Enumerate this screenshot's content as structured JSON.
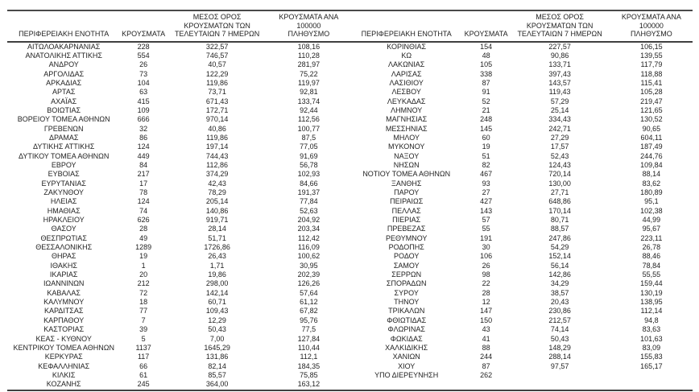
{
  "chart_data": {
    "type": "table",
    "headers": {
      "region": "ΠΕΡΙΦΕΡΕΙΑΚΗ ΕΝΟΤΗΤΑ",
      "cases": "ΚΡΟΥΣΜΑΤΑ",
      "avg7": "ΜΕΣΟΣ ΟΡΟΣ\nΚΡΟΥΣΜΑΤΩΝ ΤΩΝ\nΤΕΛΕΥΤΑΙΩΝ 7 ΗΜΕΡΩΝ",
      "per100k": "ΚΡΟΥΣΜΑΤΑ ΑΝΑ 100000\nΠΛΗΘΥΣΜΟ"
    },
    "left_rows": [
      [
        "ΑΙΤΩΛΟΑΚΑΡΝΑΝΙΑΣ",
        "228",
        "322,57",
        "108,16"
      ],
      [
        "ΑΝΑΤΟΛΙΚΗΣ ΑΤΤΙΚΗΣ",
        "554",
        "746,57",
        "110,28"
      ],
      [
        "ΑΝΔΡΟΥ",
        "26",
        "40,57",
        "281,97"
      ],
      [
        "ΑΡΓΟΛΙΔΑΣ",
        "73",
        "122,29",
        "75,22"
      ],
      [
        "ΑΡΚΑΔΙΑΣ",
        "104",
        "119,86",
        "119,97"
      ],
      [
        "ΑΡΤΑΣ",
        "63",
        "73,71",
        "92,81"
      ],
      [
        "ΑΧΑΪΑΣ",
        "415",
        "671,43",
        "133,74"
      ],
      [
        "ΒΟΙΩΤΙΑΣ",
        "109",
        "172,71",
        "92,44"
      ],
      [
        "ΒΟΡΕΙΟΥ ΤΟΜΕΑ ΑΘΗΝΩΝ",
        "666",
        "970,14",
        "112,56"
      ],
      [
        "ΓΡΕΒΕΝΩΝ",
        "32",
        "40,86",
        "100,77"
      ],
      [
        "ΔΡΑΜΑΣ",
        "86",
        "119,86",
        "87,5"
      ],
      [
        "ΔΥΤΙΚΗΣ ΑΤΤΙΚΗΣ",
        "124",
        "197,14",
        "77,05"
      ],
      [
        "ΔΥΤΙΚΟΥ ΤΟΜΕΑ ΑΘΗΝΩΝ",
        "449",
        "744,43",
        "91,69"
      ],
      [
        "ΕΒΡΟΥ",
        "84",
        "112,86",
        "56,78"
      ],
      [
        "ΕΥΒΟΙΑΣ",
        "217",
        "374,29",
        "102,93"
      ],
      [
        "ΕΥΡΥΤΑΝΙΑΣ",
        "17",
        "42,43",
        "84,66"
      ],
      [
        "ΖΑΚΥΝΘΟΥ",
        "78",
        "78,29",
        "191,37"
      ],
      [
        "ΗΛΕΙΑΣ",
        "124",
        "205,14",
        "77,84"
      ],
      [
        "ΗΜΑΘΙΑΣ",
        "74",
        "140,86",
        "52,63"
      ],
      [
        "ΗΡΑΚΛΕΙΟΥ",
        "626",
        "919,71",
        "204,92"
      ],
      [
        "ΘΑΣΟΥ",
        "28",
        "28,14",
        "203,34"
      ],
      [
        "ΘΕΣΠΡΩΤΙΑΣ",
        "49",
        "51,71",
        "112,42"
      ],
      [
        "ΘΕΣΣΑΛΟΝΙΚΗΣ",
        "1289",
        "1726,86",
        "116,09"
      ],
      [
        "ΘΗΡΑΣ",
        "19",
        "26,43",
        "100,62"
      ],
      [
        "ΙΘΑΚΗΣ",
        "1",
        "1,71",
        "30,95"
      ],
      [
        "ΙΚΑΡΙΑΣ",
        "20",
        "19,86",
        "202,39"
      ],
      [
        "ΙΩΑΝΝΙΝΩΝ",
        "212",
        "298,00",
        "126,26"
      ],
      [
        "ΚΑΒΑΛΑΣ",
        "72",
        "142,14",
        "57,64"
      ],
      [
        "ΚΑΛΥΜΝΟΥ",
        "18",
        "60,71",
        "61,12"
      ],
      [
        "ΚΑΡΔΙΤΣΑΣ",
        "77",
        "109,43",
        "67,82"
      ],
      [
        "ΚΑΡΠΑΘΟΥ",
        "7",
        "12,29",
        "95,76"
      ],
      [
        "ΚΑΣΤΟΡΙΑΣ",
        "39",
        "50,43",
        "77,5"
      ],
      [
        "ΚΕΑΣ - ΚΥΘΝΟΥ",
        "5",
        "7,00",
        "127,84"
      ],
      [
        "ΚΕΝΤΡΙΚΟΥ ΤΟΜΕΑ ΑΘΗΝΩΝ",
        "1137",
        "1645,29",
        "110,44"
      ],
      [
        "ΚΕΡΚΥΡΑΣ",
        "117",
        "131,86",
        "112,1"
      ],
      [
        "ΚΕΦΑΛΛΗΝΙΑΣ",
        "66",
        "82,14",
        "184,35"
      ],
      [
        "ΚΙΛΚΙΣ",
        "61",
        "85,57",
        "75,85"
      ],
      [
        "ΚΟΖΑΝΗΣ",
        "245",
        "364,00",
        "163,12"
      ]
    ],
    "right_rows": [
      [
        "ΚΟΡΙΝΘΙΑΣ",
        "154",
        "227,57",
        "106,15"
      ],
      [
        "ΚΩ",
        "48",
        "90,86",
        "139,55"
      ],
      [
        "ΛΑΚΩΝΙΑΣ",
        "105",
        "133,71",
        "117,79"
      ],
      [
        "ΛΑΡΙΣΑΣ",
        "338",
        "397,43",
        "118,88"
      ],
      [
        "ΛΑΣΙΘΙΟΥ",
        "87",
        "143,57",
        "115,41"
      ],
      [
        "ΛΕΣΒΟΥ",
        "91",
        "119,43",
        "105,28"
      ],
      [
        "ΛΕΥΚΑΔΑΣ",
        "52",
        "57,29",
        "219,47"
      ],
      [
        "ΛΗΜΝΟΥ",
        "21",
        "25,14",
        "121,65"
      ],
      [
        "ΜΑΓΝΗΣΙΑΣ",
        "248",
        "334,43",
        "130,52"
      ],
      [
        "ΜΕΣΣΗΝΙΑΣ",
        "145",
        "242,71",
        "90,65"
      ],
      [
        "ΜΗΛΟΥ",
        "60",
        "27,29",
        "604,11"
      ],
      [
        "ΜΥΚΟΝΟΥ",
        "19",
        "17,57",
        "187,49"
      ],
      [
        "ΝΑΞΟΥ",
        "51",
        "52,43",
        "244,76"
      ],
      [
        "ΝΗΣΩΝ",
        "82",
        "124,43",
        "109,84"
      ],
      [
        "ΝΟΤΙΟΥ ΤΟΜΕΑ ΑΘΗΝΩΝ",
        "467",
        "720,14",
        "88,14"
      ],
      [
        "ΞΑΝΘΗΣ",
        "93",
        "130,00",
        "83,62"
      ],
      [
        "ΠΑΡΟΥ",
        "27",
        "27,71",
        "180,89"
      ],
      [
        "ΠΕΙΡΑΙΩΣ",
        "427",
        "648,86",
        "95,1"
      ],
      [
        "ΠΕΛΛΑΣ",
        "143",
        "170,14",
        "102,38"
      ],
      [
        "ΠΙΕΡΙΑΣ",
        "57",
        "80,71",
        "44,99"
      ],
      [
        "ΠΡΕΒΕΖΑΣ",
        "55",
        "88,57",
        "95,67"
      ],
      [
        "ΡΕΘΥΜΝΟΥ",
        "191",
        "247,86",
        "223,11"
      ],
      [
        "ΡΟΔΟΠΗΣ",
        "30",
        "54,29",
        "26,78"
      ],
      [
        "ΡΟΔΟΥ",
        "106",
        "152,14",
        "88,46"
      ],
      [
        "ΣΑΜΟΥ",
        "26",
        "56,14",
        "78,84"
      ],
      [
        "ΣΕΡΡΩΝ",
        "98",
        "142,86",
        "55,55"
      ],
      [
        "ΣΠΟΡΑΔΩΝ",
        "22",
        "34,29",
        "159,44"
      ],
      [
        "ΣΥΡΟΥ",
        "28",
        "38,57",
        "130,19"
      ],
      [
        "ΤΗΝΟΥ",
        "12",
        "20,43",
        "138,95"
      ],
      [
        "ΤΡΙΚΑΛΩΝ",
        "147",
        "230,86",
        "112,14"
      ],
      [
        "ΦΘΙΩΤΙΔΑΣ",
        "150",
        "212,57",
        "94,8"
      ],
      [
        "ΦΛΩΡΙΝΑΣ",
        "43",
        "74,14",
        "83,63"
      ],
      [
        "ΦΩΚΙΔΑΣ",
        "41",
        "50,43",
        "101,63"
      ],
      [
        "ΧΑΛΚΙΔΙΚΗΣ",
        "88",
        "148,29",
        "83,09"
      ],
      [
        "ΧΑΝΙΩΝ",
        "244",
        "288,14",
        "155,83"
      ],
      [
        "ΧΙΟΥ",
        "87",
        "97,57",
        "165,17"
      ],
      [
        "ΥΠΟ ΔΙΕΡΕΥΝΗΣΗ",
        "262",
        "",
        ""
      ]
    ]
  }
}
